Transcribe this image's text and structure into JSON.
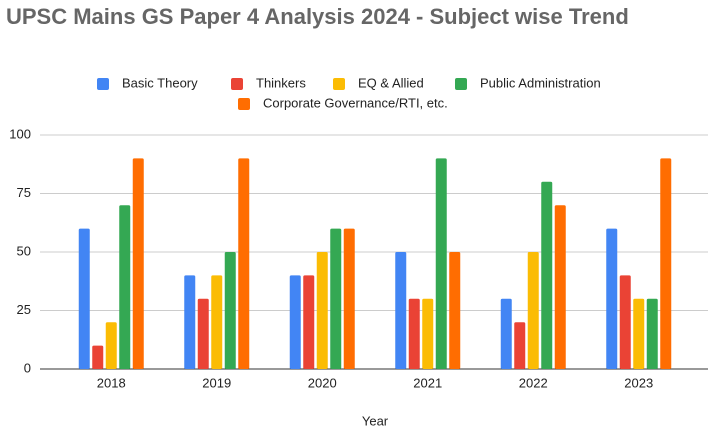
{
  "chart_data": {
    "type": "bar",
    "title": "UPSC Mains GS Paper 4 Analysis 2024 - Subject wise Trend",
    "x_label": "Year",
    "categories": [
      "2018",
      "2019",
      "2020",
      "2021",
      "2022",
      "2023"
    ],
    "series": [
      {
        "name": "Basic Theory",
        "color": "#4285f4",
        "values": [
          60,
          40,
          40,
          50,
          30,
          60
        ]
      },
      {
        "name": "Thinkers",
        "color": "#ea4335",
        "values": [
          10,
          30,
          40,
          30,
          20,
          40
        ]
      },
      {
        "name": "EQ & Allied",
        "color": "#fbbc04",
        "values": [
          20,
          40,
          50,
          30,
          50,
          30
        ]
      },
      {
        "name": "Public Administration",
        "color": "#34a853",
        "values": [
          70,
          50,
          60,
          90,
          80,
          30
        ]
      },
      {
        "name": "Corporate Governance/RTI, etc.",
        "color": "#ff6d01",
        "values": [
          90,
          90,
          60,
          50,
          70,
          90
        ]
      }
    ],
    "ylim": [
      0,
      100
    ],
    "yticks": [
      0,
      25,
      50,
      75,
      100
    ],
    "grid": true,
    "legend": "top"
  }
}
